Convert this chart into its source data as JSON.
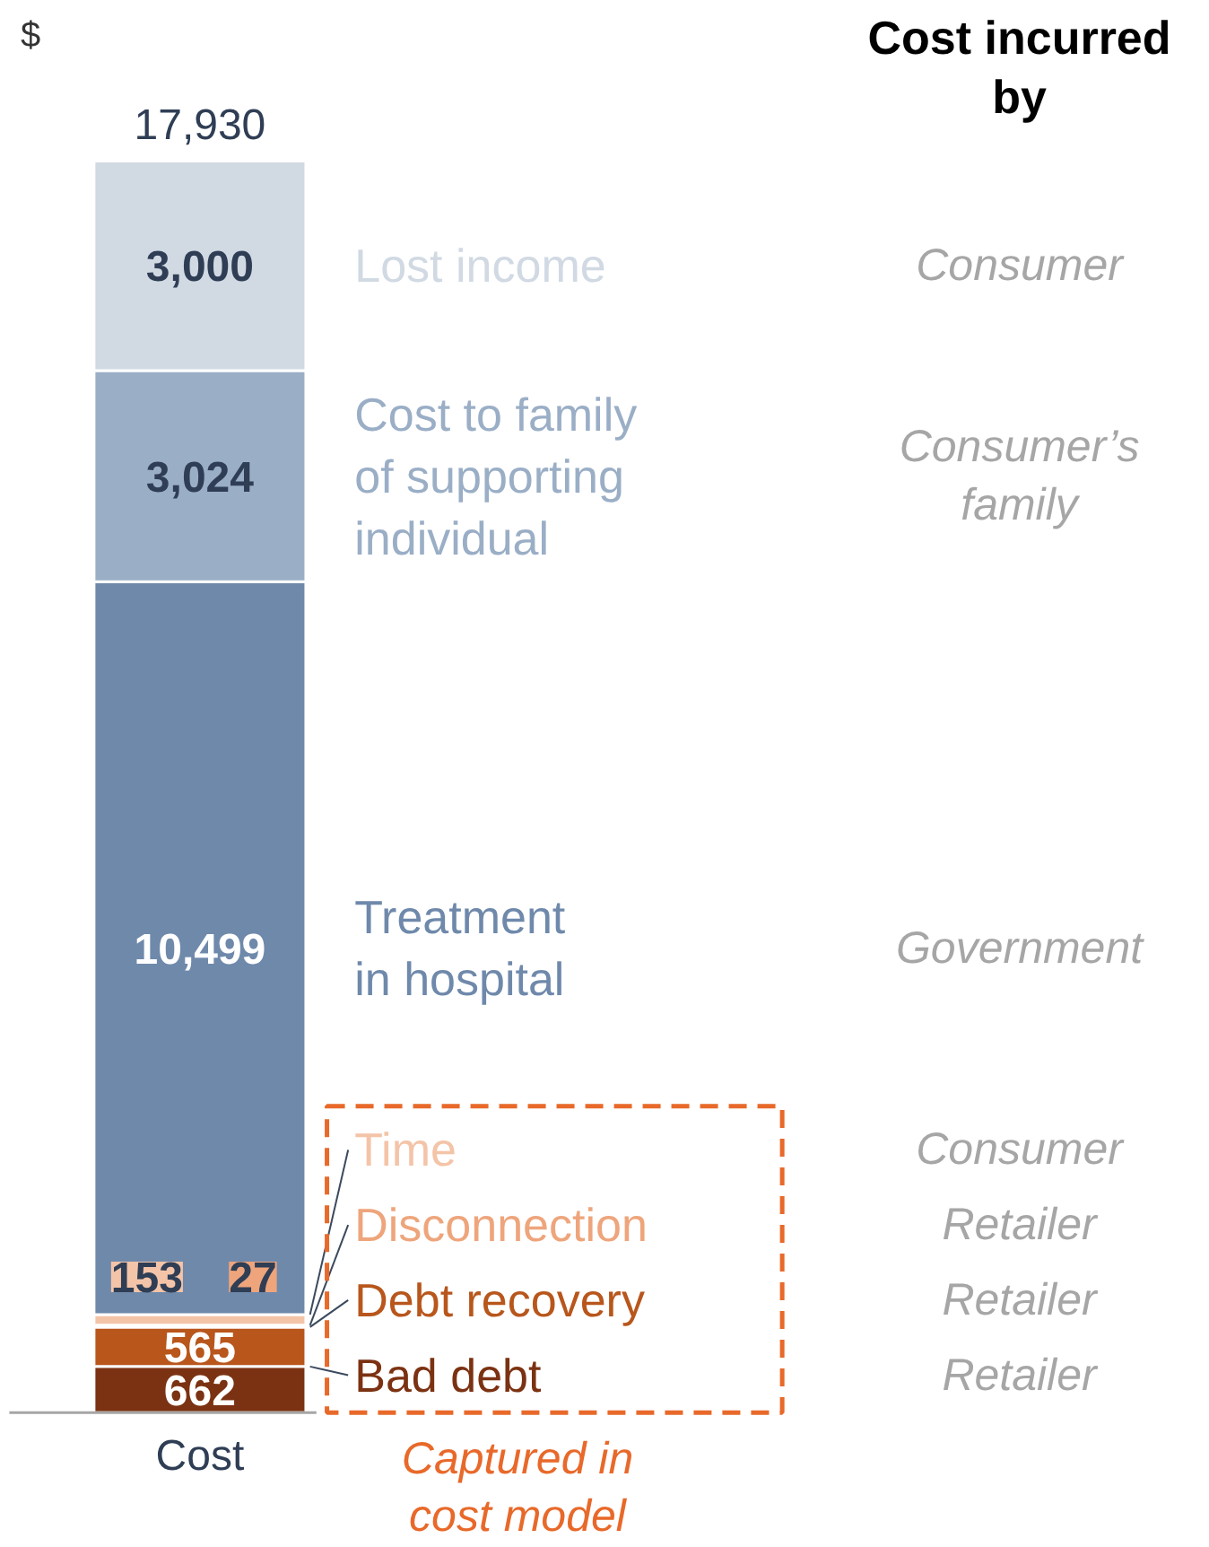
{
  "chart_data": {
    "type": "bar",
    "stacked": true,
    "ylabel": "$",
    "categories": [
      "Cost"
    ],
    "totals": [
      "17,930"
    ],
    "series": [
      {
        "name": "Bad debt",
        "color": "#7b3212",
        "values": [
          662
        ],
        "value_labels": [
          "662"
        ]
      },
      {
        "name": "Debt recovery",
        "color": "#b8561c",
        "values": [
          565
        ],
        "value_labels": [
          "565"
        ]
      },
      {
        "name": "Disconnection",
        "color": "#eea57c",
        "values": [
          27
        ],
        "value_labels": [
          "27"
        ]
      },
      {
        "name": "Time",
        "color": "#f4c4a8",
        "values": [
          153
        ],
        "value_labels": [
          "153"
        ]
      },
      {
        "name": "Treatment\nin hospital",
        "color": "#6f89ab",
        "values": [
          10499
        ],
        "value_labels": [
          "10,499"
        ]
      },
      {
        "name": "Cost to family\nof supporting\nindividual",
        "color": "#9aaec6",
        "values": [
          3024
        ],
        "value_labels": [
          "3,024"
        ]
      },
      {
        "name": "Lost income",
        "color": "#d1d9e3",
        "values": [
          3000
        ],
        "value_labels": [
          "3,000"
        ]
      }
    ],
    "annotations": [
      "Cost incurred\nby",
      "Retailer",
      "Retailer",
      "Retailer",
      "Consumer",
      "Government",
      "Consumer’s\nfamily",
      "Consumer",
      "Captured in\ncost model"
    ]
  }
}
